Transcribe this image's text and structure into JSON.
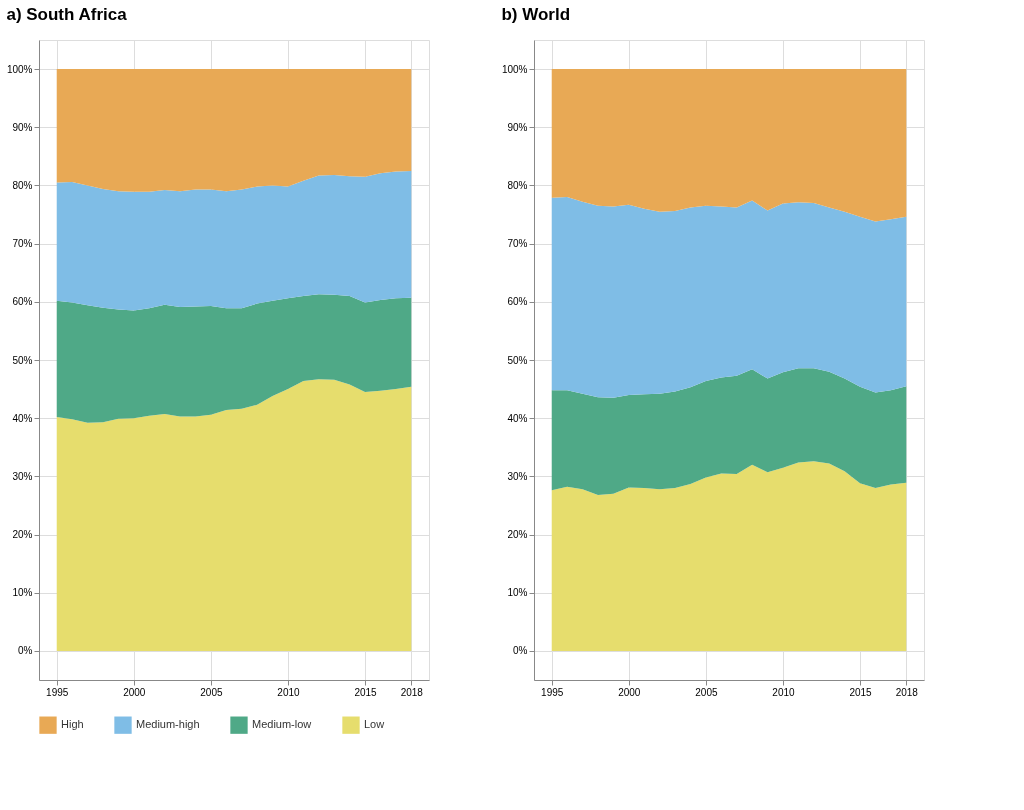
{
  "chart_data": [
    {
      "type": "area",
      "stacked": true,
      "title": "a) South Africa",
      "x": [
        1995,
        1996,
        1997,
        1998,
        1999,
        2000,
        2001,
        2002,
        2003,
        2004,
        2005,
        2006,
        2007,
        2008,
        2009,
        2010,
        2011,
        2012,
        2013,
        2014,
        2015,
        2016,
        2017,
        2018
      ],
      "series": [
        {
          "name": "Low",
          "color": "#e6dd6d",
          "values": [
            40.2,
            39.8,
            39.2,
            39.3,
            39.9,
            40.0,
            40.4,
            40.7,
            40.3,
            40.3,
            40.6,
            41.4,
            41.6,
            42.3,
            43.8,
            45.0,
            46.4,
            46.7,
            46.6,
            45.8,
            44.5,
            44.7,
            45.0,
            45.4
          ]
        },
        {
          "name": "Medium-low",
          "color": "#4fa987",
          "values": [
            20.0,
            20.1,
            20.2,
            19.7,
            18.8,
            18.5,
            18.5,
            18.8,
            18.8,
            18.9,
            18.7,
            17.5,
            17.3,
            17.4,
            16.4,
            15.6,
            14.6,
            14.6,
            14.6,
            15.2,
            15.4,
            15.6,
            15.6,
            15.3
          ]
        },
        {
          "name": "Medium-high",
          "color": "#7fbde6",
          "values": [
            20.3,
            20.7,
            20.6,
            20.4,
            20.3,
            20.4,
            20.0,
            19.7,
            19.9,
            20.1,
            20.0,
            20.1,
            20.4,
            20.1,
            19.8,
            19.2,
            19.8,
            20.4,
            20.6,
            20.6,
            21.6,
            21.8,
            21.8,
            21.8
          ]
        },
        {
          "name": "High",
          "color": "#e8a955",
          "values": [
            19.5,
            19.4,
            20.0,
            20.6,
            21.0,
            21.1,
            21.1,
            20.8,
            21.0,
            20.7,
            20.7,
            21.0,
            20.7,
            20.2,
            20.0,
            20.2,
            19.2,
            18.3,
            18.2,
            18.4,
            18.5,
            17.9,
            17.6,
            17.5
          ]
        }
      ],
      "xlim": [
        1993.85,
        2019.15
      ],
      "xticks": [
        1995,
        2000,
        2005,
        2010,
        2015,
        2018
      ],
      "ylim": [
        -5,
        105
      ],
      "yticks": [
        {
          "value": 0,
          "label": "0%"
        },
        {
          "value": 10,
          "label": "10%"
        },
        {
          "value": 20,
          "label": "20%"
        },
        {
          "value": 30,
          "label": "30%"
        },
        {
          "value": 40,
          "label": "40%"
        },
        {
          "value": 50,
          "label": "50%"
        },
        {
          "value": 60,
          "label": "60%"
        },
        {
          "value": 70,
          "label": "70%"
        },
        {
          "value": 80,
          "label": "80%"
        },
        {
          "value": 90,
          "label": "90%"
        },
        {
          "value": 100,
          "label": "100%"
        }
      ],
      "grid": true,
      "legend": "bottom"
    },
    {
      "type": "area",
      "stacked": true,
      "title": "b) World",
      "x": [
        1995,
        1996,
        1997,
        1998,
        1999,
        2000,
        2001,
        2002,
        2003,
        2004,
        2005,
        2006,
        2007,
        2008,
        2009,
        2010,
        2011,
        2012,
        2013,
        2014,
        2015,
        2016,
        2017,
        2018
      ],
      "series": [
        {
          "name": "Low",
          "color": "#e6dd6d",
          "values": [
            27.6,
            28.2,
            27.8,
            26.8,
            27.0,
            28.1,
            28.0,
            27.8,
            28.0,
            28.7,
            29.8,
            30.5,
            30.4,
            32.0,
            30.7,
            31.5,
            32.4,
            32.6,
            32.2,
            30.9,
            28.8,
            28.0,
            28.6,
            28.9
          ]
        },
        {
          "name": "Medium-low",
          "color": "#4fa987",
          "values": [
            17.2,
            16.6,
            16.4,
            16.8,
            16.5,
            15.9,
            16.1,
            16.4,
            16.6,
            16.6,
            16.6,
            16.5,
            16.9,
            16.4,
            16.1,
            16.4,
            16.2,
            16.0,
            15.8,
            15.9,
            16.6,
            16.4,
            16.2,
            16.6
          ]
        },
        {
          "name": "Medium-high",
          "color": "#7fbde6",
          "values": [
            33.1,
            33.2,
            33.0,
            32.9,
            32.9,
            32.7,
            31.9,
            31.3,
            31.0,
            30.9,
            30.1,
            29.4,
            28.9,
            29.0,
            28.9,
            29.0,
            28.5,
            28.4,
            28.2,
            28.7,
            29.2,
            29.4,
            29.4,
            29.1
          ]
        },
        {
          "name": "High",
          "color": "#e8a955",
          "values": [
            22.1,
            22.0,
            22.8,
            23.5,
            23.6,
            23.3,
            24.0,
            24.5,
            24.4,
            23.8,
            23.5,
            23.6,
            23.8,
            22.6,
            24.3,
            23.1,
            22.9,
            23.0,
            23.8,
            24.5,
            25.4,
            26.2,
            25.8,
            25.4
          ]
        }
      ],
      "xlim": [
        1993.85,
        2019.15
      ],
      "xticks": [
        1995,
        2000,
        2005,
        2010,
        2015,
        2018
      ],
      "ylim": [
        -5,
        105
      ],
      "yticks": [
        {
          "value": 0,
          "label": "0%"
        },
        {
          "value": 10,
          "label": "10%"
        },
        {
          "value": 20,
          "label": "20%"
        },
        {
          "value": 30,
          "label": "30%"
        },
        {
          "value": 40,
          "label": "40%"
        },
        {
          "value": 50,
          "label": "50%"
        },
        {
          "value": 60,
          "label": "60%"
        },
        {
          "value": 70,
          "label": "70%"
        },
        {
          "value": 80,
          "label": "80%"
        },
        {
          "value": 90,
          "label": "90%"
        },
        {
          "value": 100,
          "label": "100%"
        }
      ],
      "grid": true,
      "legend": "bottom"
    }
  ]
}
